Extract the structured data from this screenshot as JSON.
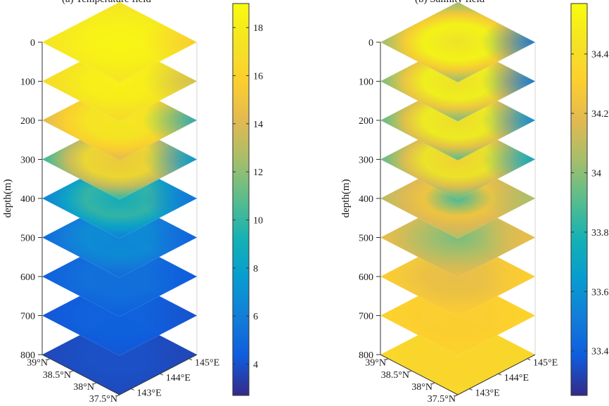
{
  "chart_data": [
    {
      "type": "heatmap",
      "title": "(a) Temperature field",
      "ylabel": "depth(m)",
      "depth_ticks": [
        "0",
        "100",
        "200",
        "300",
        "400",
        "500",
        "600",
        "700",
        "800"
      ],
      "depth_values": [
        0,
        100,
        200,
        300,
        400,
        500,
        600,
        700,
        800
      ],
      "lat_ticks": [
        "39°N",
        "38.5°N",
        "38°N",
        "37.5°N"
      ],
      "lon_ticks": [
        "143°E",
        "144°E",
        "145°E"
      ],
      "colorbar": {
        "ticks": [
          "4",
          "6",
          "8",
          "10",
          "12",
          "14",
          "16",
          "18"
        ],
        "tick_values": [
          4,
          6,
          8,
          10,
          12,
          14,
          16,
          18
        ],
        "range": [
          2.7,
          19
        ]
      },
      "layers": [
        {
          "depth": 0,
          "background": 17.5,
          "center": 18.7,
          "ring": 18.4,
          "corner_right": 15.5
        },
        {
          "depth": 100,
          "background": 16.8,
          "center": 18.4,
          "ring": 18.2,
          "corner_right": 13.5
        },
        {
          "depth": 200,
          "background": 14.5,
          "center": 17.8,
          "ring": 17.6,
          "corner_right": 8.5
        },
        {
          "depth": 300,
          "background": 10.5,
          "center": 15.5,
          "ring": 16.5,
          "corner_right": 7.0
        },
        {
          "depth": 400,
          "background": 6.5,
          "center": 9.0,
          "ring": 10.0,
          "corner_right": 5.5
        },
        {
          "depth": 500,
          "background": 5.2,
          "center": 6.5,
          "ring": 6.8,
          "corner_right": 4.8
        },
        {
          "depth": 600,
          "background": 4.6,
          "center": 5.2,
          "ring": 5.3,
          "corner_right": 4.4
        },
        {
          "depth": 700,
          "background": 4.2,
          "center": 4.6,
          "ring": 4.6,
          "corner_right": 4.0
        },
        {
          "depth": 800,
          "background": 3.7,
          "center": 3.9,
          "ring": 3.9,
          "corner_right": 3.6
        }
      ]
    },
    {
      "type": "heatmap",
      "title": "(b) Salinity field",
      "ylabel": "depth(m)",
      "depth_ticks": [
        "0",
        "100",
        "200",
        "300",
        "400",
        "500",
        "600",
        "700",
        "800"
      ],
      "depth_values": [
        0,
        100,
        200,
        300,
        400,
        500,
        600,
        700,
        800
      ],
      "lat_ticks": [
        "39°N",
        "38.5°N",
        "38°N",
        "37.5°N"
      ],
      "lon_ticks": [
        "143°E",
        "144°E",
        "145°E"
      ],
      "colorbar": {
        "ticks": [
          "33.4",
          "33.6",
          "33.8",
          "34",
          "34.2",
          "34.4"
        ],
        "tick_values": [
          33.4,
          33.6,
          33.8,
          34.0,
          34.2,
          34.4
        ],
        "range": [
          33.25,
          34.57
        ]
      },
      "layers": [
        {
          "depth": 0,
          "background": 34.05,
          "center": 34.45,
          "ring": 34.55,
          "corner_right": 33.45
        },
        {
          "depth": 100,
          "background": 34.0,
          "center": 34.45,
          "ring": 34.52,
          "corner_right": 33.45
        },
        {
          "depth": 200,
          "background": 33.95,
          "center": 34.42,
          "ring": 34.5,
          "corner_right": 33.55
        },
        {
          "depth": 300,
          "background": 33.95,
          "center": 34.35,
          "ring": 34.45,
          "corner_right": 33.7
        },
        {
          "depth": 400,
          "background": 34.1,
          "center": 33.85,
          "ring": 34.25,
          "corner_right": 34.05
        },
        {
          "depth": 500,
          "background": 34.2,
          "center": 33.95,
          "ring": 34.05,
          "corner_right": 34.2
        },
        {
          "depth": 600,
          "background": 34.3,
          "center": 34.2,
          "ring": 34.22,
          "corner_right": 34.3
        },
        {
          "depth": 700,
          "background": 34.33,
          "center": 34.3,
          "ring": 34.3,
          "corner_right": 34.33
        },
        {
          "depth": 800,
          "background": 34.36,
          "center": 34.35,
          "ring": 34.35,
          "corner_right": 34.36
        }
      ]
    }
  ]
}
